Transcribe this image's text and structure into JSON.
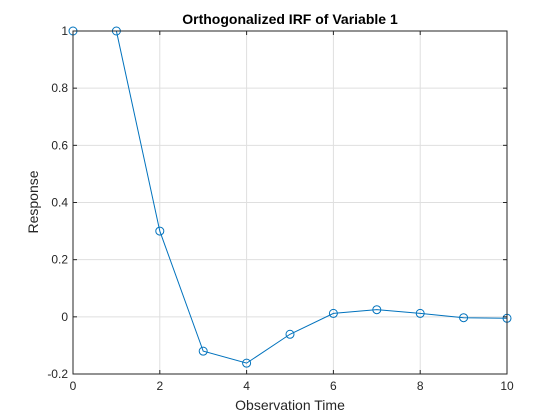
{
  "chart_data": {
    "type": "line",
    "title": "Orthogonalized IRF of Variable 1",
    "xlabel": "Observation Time",
    "ylabel": "Response",
    "xlim": [
      0,
      10
    ],
    "ylim": [
      -0.2,
      1
    ],
    "grid": true,
    "x_ticks": [
      "0",
      "2",
      "4",
      "6",
      "8",
      "10"
    ],
    "y_ticks": [
      "-0.2",
      "0",
      "0.2",
      "0.4",
      "0.6",
      "0.8",
      "1"
    ],
    "series": [
      {
        "x": [
          0,
          1,
          2,
          3,
          4,
          5,
          6,
          7,
          8,
          9,
          10
        ],
        "y": [
          1.0,
          1.0,
          0.3,
          -0.12,
          -0.162,
          -0.061,
          0.012,
          0.025,
          0.012,
          -0.003,
          -0.005
        ],
        "color": "#0072BD",
        "marker": "circle"
      }
    ]
  }
}
